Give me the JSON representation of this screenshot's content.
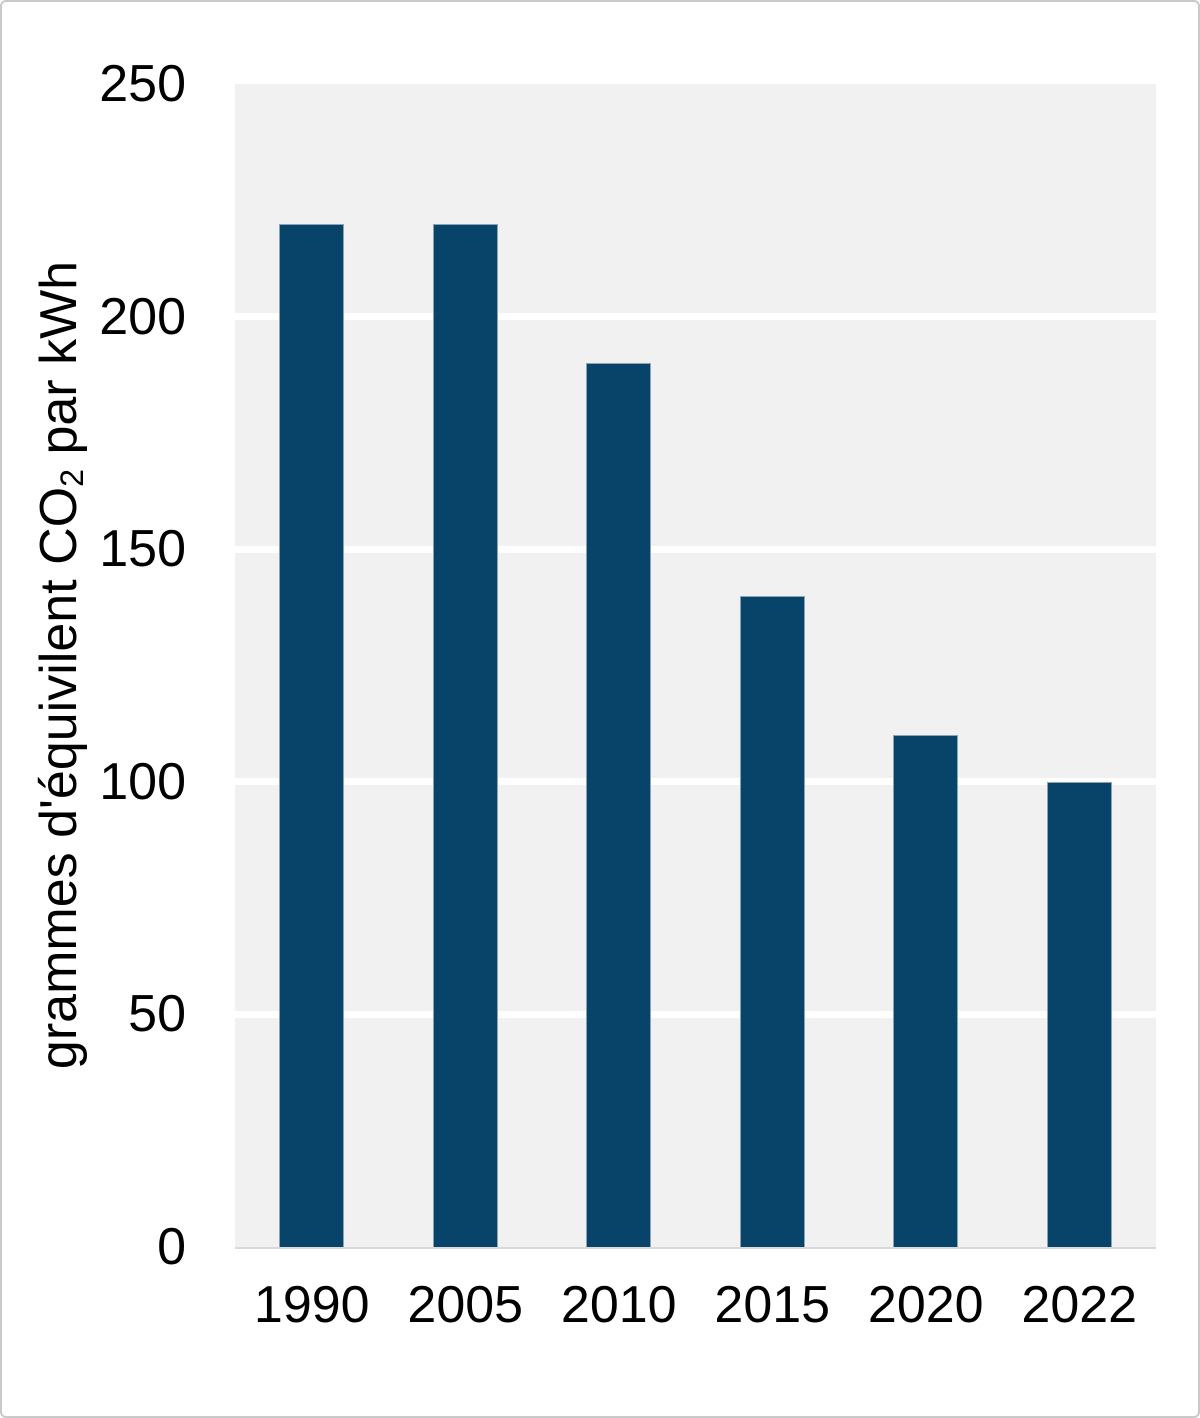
{
  "figure": {
    "kind": "bar-chart",
    "title": ""
  },
  "colors": {
    "bar_fill": "#084469",
    "bar_edge": "#8aa3b5",
    "plot_background": "#f1f1f1",
    "gridline": "#ffffff",
    "axis_line": "#d9d9d9",
    "page_border": "#c9c9c9",
    "text": "#000000"
  },
  "y_axis": {
    "title_pre": "grammes d'équivilent CO",
    "title_sub": "2",
    "title_post": " par kWh",
    "tick_labels": [
      "0",
      "50",
      "100",
      "150",
      "200",
      "250"
    ]
  },
  "x_axis": {
    "tick_labels": [
      "1990",
      "2005",
      "2010",
      "2015",
      "2020",
      "2022"
    ]
  },
  "chart_data": {
    "type": "bar",
    "categories": [
      "1990",
      "2005",
      "2010",
      "2015",
      "2020",
      "2022"
    ],
    "values": [
      220,
      220,
      190,
      140,
      110,
      100
    ],
    "title": "",
    "xlabel": "",
    "ylabel": "grammes d'équivilent CO2 par kWh",
    "ylim": [
      0,
      250
    ],
    "yticks": [
      0,
      50,
      100,
      150,
      200,
      250
    ],
    "gridlines": [
      50,
      100,
      150,
      200
    ],
    "grid": "horizontal",
    "legend": "none",
    "bar_color": "#084469"
  }
}
